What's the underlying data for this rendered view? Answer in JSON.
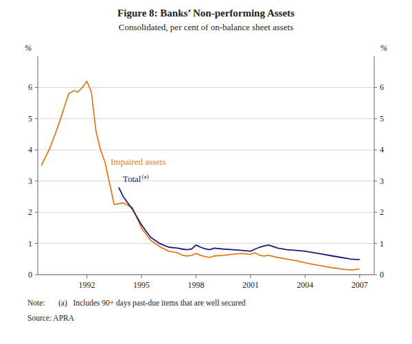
{
  "chart_data": {
    "type": "line",
    "title": "Figure 8: Banks’ Non-performing Assets",
    "subtitle": "Consolidated, per cent of on-balance sheet assets",
    "ylabel": "%",
    "y2label": "%",
    "annotations": [
      "(a)",
      "Note:",
      "(a)   Includes 90+ days past-due items that are well secured",
      "Source: APRA"
    ],
    "xlim": [
      1989.3,
      2007.8
    ],
    "xticks": [
      1992,
      1995,
      1998,
      2001,
      2004,
      2007
    ],
    "ylim": [
      0,
      7
    ],
    "yticks": [
      0,
      1,
      2,
      3,
      4,
      5,
      6
    ],
    "y2lim": [
      0,
      7
    ],
    "y2ticks": [
      0,
      1,
      2,
      3,
      4,
      5,
      6
    ],
    "grid": true,
    "series": [
      {
        "name": "Impaired assets",
        "color": "#e07b20",
        "x": [
          1989.5,
          1990.0,
          1990.5,
          1991.0,
          1991.3,
          1991.5,
          1991.75,
          1992.0,
          1992.25,
          1992.5,
          1992.75,
          1993.0,
          1993.5,
          1994.0,
          1994.5,
          1995.0,
          1995.5,
          1996.0,
          1996.5,
          1997.0,
          1997.25,
          1997.5,
          1997.75,
          1998.0,
          1998.25,
          1998.5,
          1998.75,
          1999.0,
          1999.5,
          2000.0,
          2000.5,
          2001.0,
          2001.25,
          2001.5,
          2001.75,
          2002.0,
          2002.5,
          2003.0,
          2003.5,
          2004.0,
          2004.5,
          2005.0,
          2005.5,
          2006.0,
          2006.5,
          2007.0
        ],
        "values": [
          3.5,
          4.1,
          4.9,
          5.8,
          5.9,
          5.85,
          6.0,
          6.2,
          5.85,
          4.6,
          4.0,
          3.6,
          2.25,
          2.3,
          2.15,
          1.5,
          1.1,
          0.9,
          0.75,
          0.7,
          0.62,
          0.6,
          0.62,
          0.68,
          0.62,
          0.58,
          0.55,
          0.6,
          0.62,
          0.65,
          0.68,
          0.65,
          0.7,
          0.62,
          0.6,
          0.62,
          0.55,
          0.5,
          0.45,
          0.38,
          0.32,
          0.27,
          0.22,
          0.18,
          0.15,
          0.18
        ]
      },
      {
        "name": "Total",
        "color": "#1a1a7a",
        "x": [
          1993.75,
          1994.0,
          1994.5,
          1995.0,
          1995.5,
          1996.0,
          1996.5,
          1997.0,
          1997.25,
          1997.5,
          1997.75,
          1998.0,
          1998.25,
          1998.5,
          1998.75,
          1999.0,
          1999.5,
          2000.0,
          2000.5,
          2001.0,
          2001.25,
          2001.5,
          2001.75,
          2002.0,
          2002.5,
          2003.0,
          2003.5,
          2004.0,
          2004.5,
          2005.0,
          2005.5,
          2006.0,
          2006.5,
          2007.0
        ],
        "values": [
          2.8,
          2.5,
          2.1,
          1.6,
          1.2,
          1.0,
          0.88,
          0.85,
          0.82,
          0.8,
          0.82,
          0.95,
          0.88,
          0.83,
          0.8,
          0.85,
          0.82,
          0.8,
          0.78,
          0.75,
          0.82,
          0.88,
          0.92,
          0.95,
          0.85,
          0.8,
          0.78,
          0.75,
          0.7,
          0.65,
          0.6,
          0.55,
          0.5,
          0.48
        ]
      }
    ]
  }
}
